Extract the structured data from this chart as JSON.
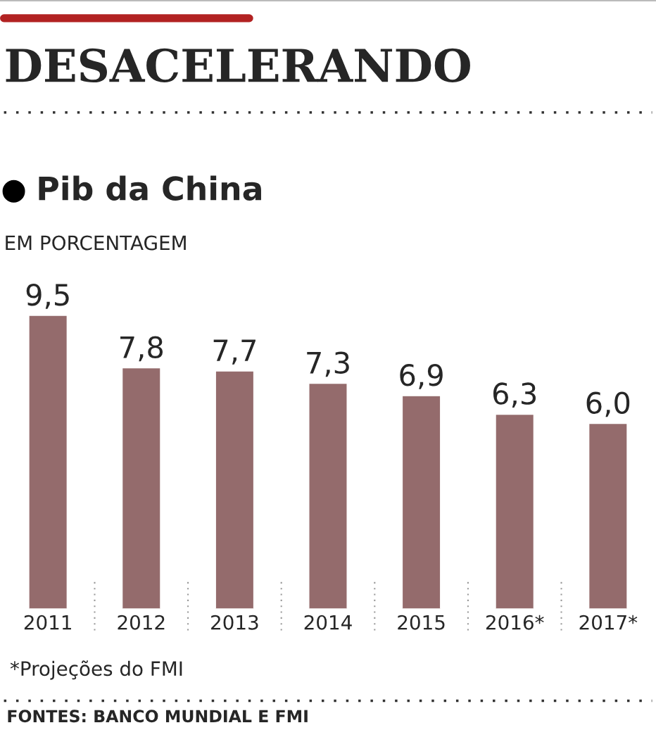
{
  "chart_data": {
    "type": "bar",
    "title": "DESACELERANDO",
    "subtitle": "Pib da China",
    "ylabel": "EM PORCENTAGEM",
    "categories": [
      "2011",
      "2012",
      "2013",
      "2014",
      "2015",
      "2016*",
      "2017*"
    ],
    "values": [
      9.5,
      7.8,
      7.7,
      7.3,
      6.9,
      6.3,
      6.0
    ],
    "value_labels": [
      "9,5",
      "7,8",
      "7,7",
      "7,3",
      "6,9",
      "6,3",
      "6,0"
    ],
    "color": "#946b6c",
    "grid": false,
    "legend": false,
    "annotations": [
      "*Projeções do FMI",
      "FONTES: BANCO MUNDIAL E FMI"
    ]
  }
}
